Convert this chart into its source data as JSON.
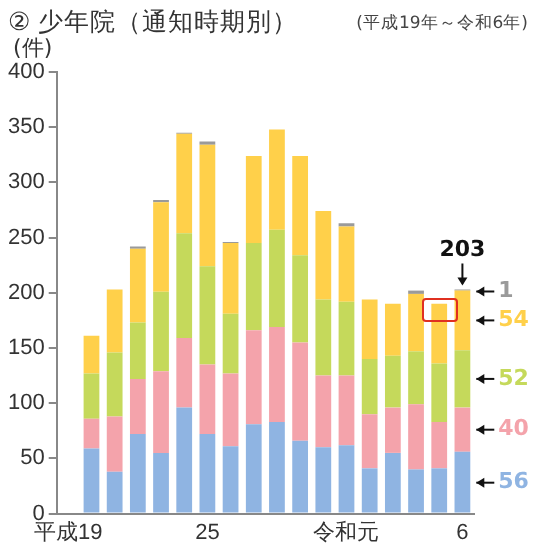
{
  "chart_data": {
    "type": "bar",
    "title": "② 少年院（通知時期別）",
    "subtitle": "(平成19年～令和6年)",
    "ylabel": "(件)",
    "stacked": true,
    "categories": [
      "平成19",
      null,
      null,
      null,
      null,
      null,
      "25",
      null,
      null,
      null,
      null,
      null,
      "令和元",
      null,
      null,
      null,
      null,
      "6"
    ],
    "series": [
      {
        "color": "#8fb4e2",
        "values": [
          null,
          59,
          38,
          72,
          55,
          96,
          72,
          61,
          81,
          83,
          66,
          60,
          62,
          41,
          55,
          40,
          41,
          56
        ],
        "value_labels": [
          null,
          null,
          null,
          null,
          null,
          null,
          null,
          null,
          null,
          null,
          null,
          null,
          null,
          null,
          null,
          null,
          null,
          "56"
        ]
      },
      {
        "color": "#f4a3ab",
        "values": [
          null,
          27,
          50,
          50,
          74,
          63,
          63,
          66,
          85,
          86,
          89,
          65,
          63,
          49,
          41,
          59,
          42,
          40
        ],
        "value_labels": [
          null,
          null,
          null,
          null,
          null,
          null,
          null,
          null,
          null,
          null,
          null,
          null,
          null,
          null,
          null,
          null,
          null,
          "40"
        ]
      },
      {
        "color": "#c5d95b",
        "values": [
          null,
          41,
          58,
          51,
          72,
          95,
          89,
          54,
          79,
          88,
          79,
          69,
          67,
          50,
          47,
          48,
          53,
          52
        ],
        "value_labels": [
          null,
          null,
          null,
          null,
          null,
          null,
          null,
          null,
          null,
          null,
          null,
          null,
          null,
          null,
          null,
          null,
          null,
          "52"
        ]
      },
      {
        "color": "#ffd04a",
        "values": [
          null,
          34,
          57,
          67,
          81,
          90,
          110,
          64,
          79,
          91,
          90,
          80,
          68,
          54,
          47,
          52,
          54,
          54
        ],
        "value_labels": [
          null,
          null,
          null,
          null,
          null,
          null,
          null,
          null,
          null,
          null,
          null,
          null,
          null,
          null,
          null,
          null,
          null,
          "54"
        ]
      },
      {
        "color": "#9a9a9a",
        "values": [
          null,
          null,
          null,
          2,
          2,
          1,
          3,
          1,
          null,
          null,
          null,
          null,
          3,
          null,
          null,
          3,
          null,
          1
        ],
        "value_labels": [
          null,
          null,
          null,
          null,
          null,
          null,
          null,
          null,
          null,
          null,
          null,
          null,
          null,
          null,
          null,
          null,
          null,
          "1"
        ]
      }
    ],
    "totals": [
      null,
      null,
      null,
      null,
      null,
      null,
      null,
      null,
      null,
      null,
      null,
      null,
      null,
      null,
      null,
      null,
      null,
      "203"
    ],
    "ylim": [
      0,
      400
    ],
    "yticks": [
      0,
      50,
      100,
      150,
      200,
      250,
      300,
      350,
      400
    ],
    "grid": false,
    "legend": false
  }
}
